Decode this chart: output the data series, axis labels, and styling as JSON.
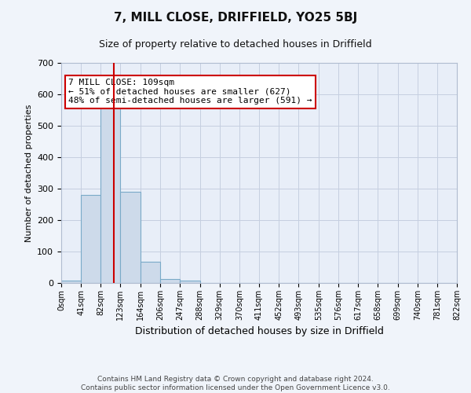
{
  "title": "7, MILL CLOSE, DRIFFIELD, YO25 5BJ",
  "subtitle": "Size of property relative to detached houses in Driffield",
  "xlabel": "Distribution of detached houses by size in Driffield",
  "ylabel": "Number of detached properties",
  "bar_edges": [
    0,
    41,
    82,
    123,
    164,
    206,
    247,
    288,
    329,
    370,
    411,
    452,
    493,
    535,
    576,
    617,
    658,
    699,
    740,
    781,
    822
  ],
  "bar_heights": [
    7,
    280,
    560,
    290,
    68,
    13,
    8,
    0,
    0,
    0,
    0,
    0,
    0,
    0,
    0,
    0,
    0,
    0,
    0,
    0
  ],
  "bar_color": "#cddaea",
  "bar_edge_color": "#7aaac8",
  "property_size": 109,
  "vline_color": "#cc0000",
  "annotation_text": "7 MILL CLOSE: 109sqm\n← 51% of detached houses are smaller (627)\n48% of semi-detached houses are larger (591) →",
  "annotation_box_color": "#ffffff",
  "annotation_box_edge": "#cc0000",
  "grid_color": "#c5cfe0",
  "background_color": "#f0f4fa",
  "plot_bg_color": "#e8eef8",
  "footer_text": "Contains HM Land Registry data © Crown copyright and database right 2024.\nContains public sector information licensed under the Open Government Licence v3.0.",
  "ylim": [
    0,
    700
  ],
  "yticks": [
    0,
    100,
    200,
    300,
    400,
    500,
    600,
    700
  ],
  "tick_labels": [
    "0sqm",
    "41sqm",
    "82sqm",
    "123sqm",
    "164sqm",
    "206sqm",
    "247sqm",
    "288sqm",
    "329sqm",
    "370sqm",
    "411sqm",
    "452sqm",
    "493sqm",
    "535sqm",
    "576sqm",
    "617sqm",
    "658sqm",
    "699sqm",
    "740sqm",
    "781sqm",
    "822sqm"
  ],
  "title_fontsize": 11,
  "subtitle_fontsize": 9,
  "ylabel_fontsize": 8,
  "xlabel_fontsize": 9,
  "tick_fontsize": 7,
  "footer_fontsize": 6.5,
  "annot_fontsize": 8
}
